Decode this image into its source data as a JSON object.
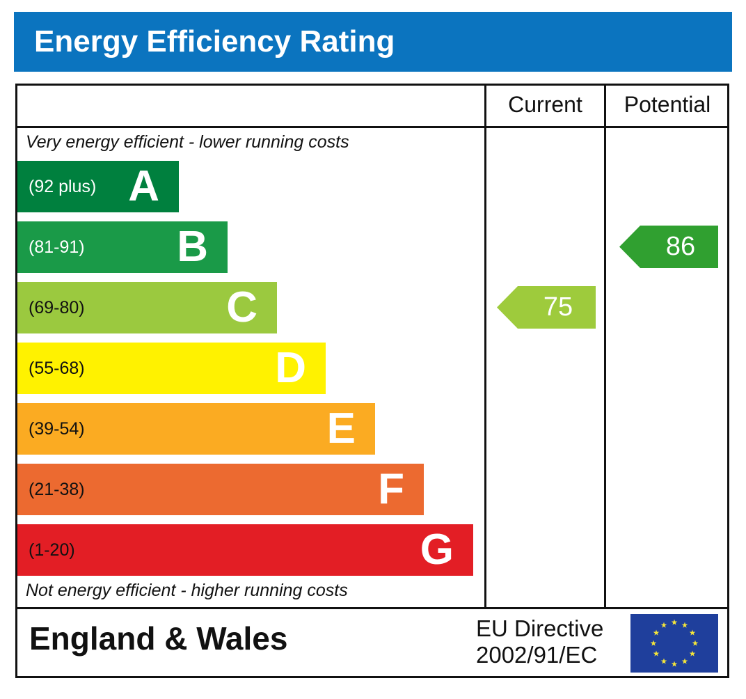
{
  "title": "Energy Efficiency Rating",
  "columns": {
    "current": "Current",
    "potential": "Potential"
  },
  "top_note": "Very energy efficient - lower running costs",
  "bottom_note": "Not energy efficient - higher running costs",
  "footer": {
    "country": "England & Wales",
    "directive_line1": "EU Directive",
    "directive_line2": "2002/91/EC",
    "flag": "eu-flag-icon"
  },
  "chart_data": {
    "type": "bar",
    "title": "Energy Efficiency Rating",
    "categories": [
      "A",
      "B",
      "C",
      "D",
      "E",
      "F",
      "G"
    ],
    "bands": [
      {
        "letter": "A",
        "range": "(92 plus)",
        "min": 92,
        "max": 100,
        "color": "#00803e",
        "text_color": "#ffffff"
      },
      {
        "letter": "B",
        "range": "(81-91)",
        "min": 81,
        "max": 91,
        "color": "#1a9a48",
        "text_color": "#ffffff"
      },
      {
        "letter": "C",
        "range": "(69-80)",
        "min": 69,
        "max": 80,
        "color": "#9bc93f",
        "text_color": "#111111"
      },
      {
        "letter": "D",
        "range": "(55-68)",
        "min": 55,
        "max": 68,
        "color": "#fff200",
        "text_color": "#111111"
      },
      {
        "letter": "E",
        "range": "(39-54)",
        "min": 39,
        "max": 54,
        "color": "#fbab22",
        "text_color": "#111111"
      },
      {
        "letter": "F",
        "range": "(21-38)",
        "min": 21,
        "max": 38,
        "color": "#ec6a30",
        "text_color": "#111111"
      },
      {
        "letter": "G",
        "range": "(1-20)",
        "min": 1,
        "max": 20,
        "color": "#e31e25",
        "text_color": "#111111"
      }
    ],
    "current": {
      "value": 75,
      "band": "C",
      "color": "#9ecb3c"
    },
    "potential": {
      "value": 86,
      "band": "B",
      "color": "#30a030"
    }
  }
}
